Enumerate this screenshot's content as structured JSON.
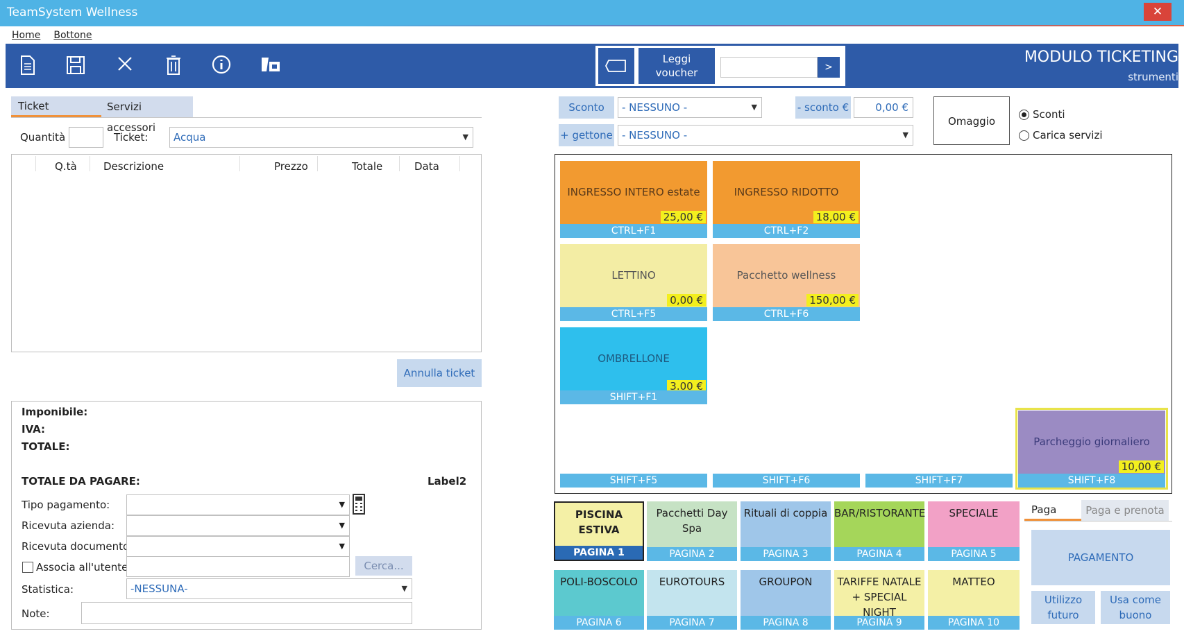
{
  "window": {
    "title": "TeamSystem Wellness",
    "close_glyph": "✕"
  },
  "menu": {
    "home": "Home",
    "bottone": "Bottone"
  },
  "toolbar": {
    "icons": [
      "new-document-icon",
      "save-icon",
      "cancel-icon",
      "delete-icon",
      "info-icon",
      "voucher-tools-icon"
    ],
    "voucher_read": "Leggi voucher",
    "voucher_value": "",
    "voucher_go": ">",
    "module_title": "MODULO TICKETING",
    "module_sub": "strumenti"
  },
  "ticket_tabs": {
    "ticket": "Ticket",
    "servizi": "Servizi accessori"
  },
  "ticket_form": {
    "qty_label": "Quantità",
    "qty_value": "",
    "ticket_label": "Ticket:",
    "ticket_value": "Acqua"
  },
  "grid": {
    "columns": [
      "Q.tà",
      "Descrizione",
      "Prezzo",
      "Totale",
      "Data"
    ],
    "rows": []
  },
  "annulla": "Annulla ticket",
  "totals": {
    "imponibile": "Imponibile:",
    "iva": "IVA:",
    "totale": "TOTALE:",
    "totale_pagare": "TOTALE DA PAGARE:",
    "label2": "Label2"
  },
  "payment_form": {
    "tipo": "Tipo pagamento:",
    "ricevuta_azienda": "Ricevuta azienda:",
    "ricevuta_documento": "Ricevuta documento:",
    "associa": "Associa all'utente",
    "cerca": "Cerca...",
    "statistica": "Statistica:",
    "statistica_value": "-NESSUNA-",
    "note": "Note:"
  },
  "discounts": {
    "sconto_label": "Sconto",
    "sconto_value": "- NESSUNO -",
    "sconto_euro_label": "- sconto €",
    "sconto_euro_value": "0,00 €",
    "gettone_label": "+ gettone",
    "gettone_value": "- NESSUNO -",
    "omaggio": "Omaggio",
    "radio_sconti": "Sconti",
    "radio_carica": "Carica servizi",
    "selected": "Sconti"
  },
  "tiles": [
    {
      "name": "INGRESSO INTERO estate",
      "price": "25,00 €",
      "shortcut": "CTRL+F1",
      "color": "#f29a30"
    },
    {
      "name": "INGRESSO RIDOTTO",
      "price": "18,00 €",
      "shortcut": "CTRL+F2",
      "color": "#f29a30"
    },
    {
      "name": "LETTINO",
      "price": "0,00 €",
      "shortcut": "CTRL+F5",
      "color": "#f3eda4"
    },
    {
      "name": "Pacchetto wellness",
      "price": "150,00 €",
      "shortcut": "CTRL+F6",
      "color": "#f8c598"
    },
    {
      "name": "OMBRELLONE",
      "price": "3.00 €",
      "shortcut": "SHIFT+F1",
      "color": "#2ebfed"
    },
    {
      "name": "Parcheggio giornaliero",
      "price": "10,00 €",
      "shortcut": "SHIFT+F8",
      "color": "#9b8bc3"
    }
  ],
  "empty_shortcuts": [
    "SHIFT+F5",
    "SHIFT+F6",
    "SHIFT+F7"
  ],
  "pages": [
    {
      "name": "PISCINA ESTIVA",
      "label": "PAGINA 1",
      "color": "#f4f0a6",
      "label_color": "#2a6ab4"
    },
    {
      "name": "Pacchetti Day Spa",
      "label": "PAGINA 2",
      "color": "#c6e2c4",
      "label_color": "#5bb8e6"
    },
    {
      "name": "Rituali di coppia",
      "label": "PAGINA 3",
      "color": "#9fc6e9",
      "label_color": "#5bb8e6"
    },
    {
      "name": "BAR/RISTORANTE",
      "label": "PAGINA 4",
      "color": "#a5d65a",
      "label_color": "#5bb8e6"
    },
    {
      "name": "SPECIALE",
      "label": "PAGINA 5",
      "color": "#f2a1c6",
      "label_color": "#5bb8e6"
    },
    {
      "name": "POLI-BOSCOLO",
      "label": "PAGINA 6",
      "color": "#5cc9cf",
      "label_color": "#5bb8e6"
    },
    {
      "name": "EUROTOURS",
      "label": "PAGINA 7",
      "color": "#c3e4ee",
      "label_color": "#5bb8e6"
    },
    {
      "name": "GROUPON",
      "label": "PAGINA 8",
      "color": "#9fc6e9",
      "label_color": "#5bb8e6"
    },
    {
      "name": "TARIFFE NATALE + SPECIAL NIGHT",
      "label": "PAGINA 9",
      "color": "#f4f0a6",
      "label_color": "#5bb8e6"
    },
    {
      "name": "MATTEO",
      "label": "PAGINA 10",
      "color": "#f4f0a6",
      "label_color": "#5bb8e6"
    }
  ],
  "pay": {
    "tab_paga": "Paga",
    "tab_paga_prenota": "Paga e prenota",
    "pagamento": "PAGAMENTO",
    "utilizzo": "Utilizzo futuro",
    "usa_buono": "Usa come buono"
  }
}
